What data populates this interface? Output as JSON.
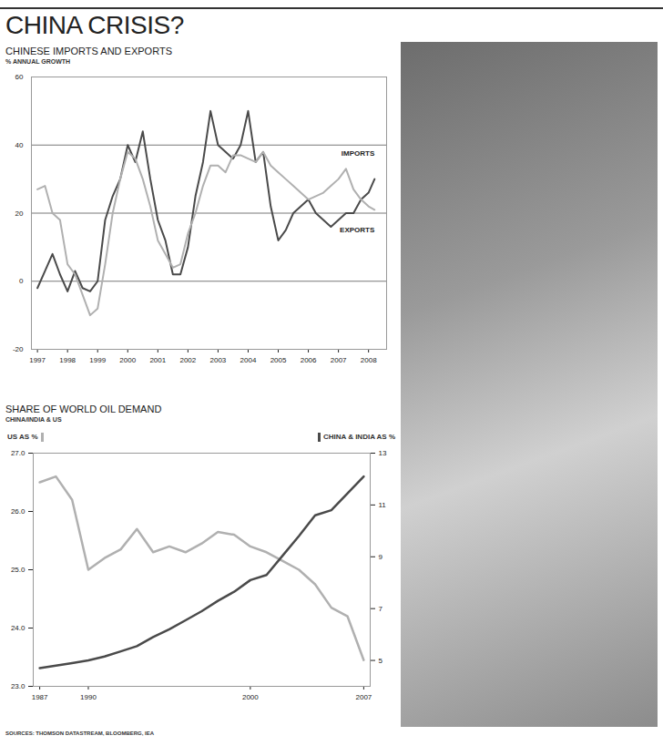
{
  "title": "CHINA CRISIS?",
  "source": "SOURCES: THOMSON DATASTREAM, BLOOMBERG, IEA",
  "chart_data": [
    {
      "type": "line",
      "title": "CHINESE IMPORTS AND EXPORTS",
      "subtitle": "% ANNUAL GROWTH",
      "x": [
        1997,
        1997.25,
        1997.5,
        1997.75,
        1998,
        1998.25,
        1998.5,
        1998.75,
        1999,
        1999.25,
        1999.5,
        1999.75,
        2000,
        2000.25,
        2000.5,
        2000.75,
        2001,
        2001.25,
        2001.5,
        2001.75,
        2002,
        2002.25,
        2002.5,
        2002.75,
        2003,
        2003.25,
        2003.5,
        2003.75,
        2004,
        2004.25,
        2004.5,
        2004.75,
        2005,
        2005.25,
        2005.5,
        2005.75,
        2006,
        2006.25,
        2006.5,
        2006.75,
        2007,
        2007.25,
        2007.5,
        2007.75,
        2008,
        2008.2
      ],
      "series": [
        {
          "name": "IMPORTS",
          "color": "#4a4a4a",
          "values": [
            -2,
            3,
            8,
            2,
            -3,
            3,
            -2,
            -3,
            0,
            18,
            25,
            30,
            40,
            35,
            44,
            30,
            18,
            12,
            2,
            2,
            10,
            25,
            35,
            50,
            40,
            38,
            36,
            40,
            50,
            35,
            38,
            22,
            12,
            15,
            20,
            22,
            24,
            20,
            18,
            16,
            18,
            20,
            20,
            24,
            26,
            30
          ]
        },
        {
          "name": "EXPORTS",
          "color": "#b0b0b0",
          "values": [
            27,
            28,
            20,
            18,
            5,
            2,
            -4,
            -10,
            -8,
            5,
            20,
            30,
            38,
            36,
            30,
            22,
            12,
            8,
            4,
            5,
            14,
            20,
            28,
            34,
            34,
            32,
            37,
            37,
            36,
            35,
            38,
            34,
            32,
            30,
            28,
            26,
            24,
            25,
            26,
            28,
            30,
            33,
            27,
            24,
            22,
            21
          ]
        }
      ],
      "xlim": [
        1996.8,
        2008.6
      ],
      "xticks": [
        1997,
        1998,
        1999,
        2000,
        2001,
        2002,
        2003,
        2004,
        2005,
        2006,
        2007,
        2008
      ],
      "ylim": [
        -20,
        60
      ],
      "yticks": [
        -20,
        0,
        20,
        40,
        60
      ],
      "grid": true
    },
    {
      "type": "line",
      "title": "SHARE OF WORLD OIL DEMAND",
      "subtitle": "CHINA/INDIA & US",
      "x": [
        1987,
        1988,
        1989,
        1990,
        1991,
        1992,
        1993,
        1994,
        1995,
        1996,
        1997,
        1998,
        1999,
        2000,
        2001,
        2002,
        2003,
        2004,
        2005,
        2006,
        2007
      ],
      "series": [
        {
          "name": "US AS %",
          "color": "#b0b0b0",
          "values": [
            26.5,
            26.6,
            26.2,
            25.0,
            25.2,
            25.35,
            25.7,
            25.3,
            25.4,
            25.3,
            25.45,
            25.65,
            25.6,
            25.4,
            25.3,
            25.15,
            25.0,
            24.75,
            24.35,
            24.2,
            23.45
          ]
        },
        {
          "name": "CHINA & INDIA AS %",
          "color": "#4a4a4a",
          "axis": "y2",
          "values": [
            4.7,
            4.8,
            4.9,
            5.0,
            5.15,
            5.35,
            5.55,
            5.9,
            6.2,
            6.55,
            6.9,
            7.3,
            7.65,
            8.1,
            8.3,
            9.05,
            9.8,
            10.6,
            10.8,
            11.45,
            12.1
          ]
        }
      ],
      "xlim": [
        1986.6,
        2007.4
      ],
      "xticks": [
        1987,
        1990,
        2000,
        2007
      ],
      "ylim": [
        23,
        27
      ],
      "yticks": [
        {
          "value": 23,
          "label": "23.0"
        },
        {
          "value": 24,
          "label": "24.0"
        },
        {
          "value": 25,
          "label": "25.0"
        },
        {
          "value": 26,
          "label": "26.0"
        },
        {
          "value": 27,
          "label": "27.0"
        }
      ],
      "y2lim": [
        4,
        13
      ],
      "y2ticks": [
        5,
        7,
        9,
        11,
        13
      ],
      "grid": false
    }
  ]
}
